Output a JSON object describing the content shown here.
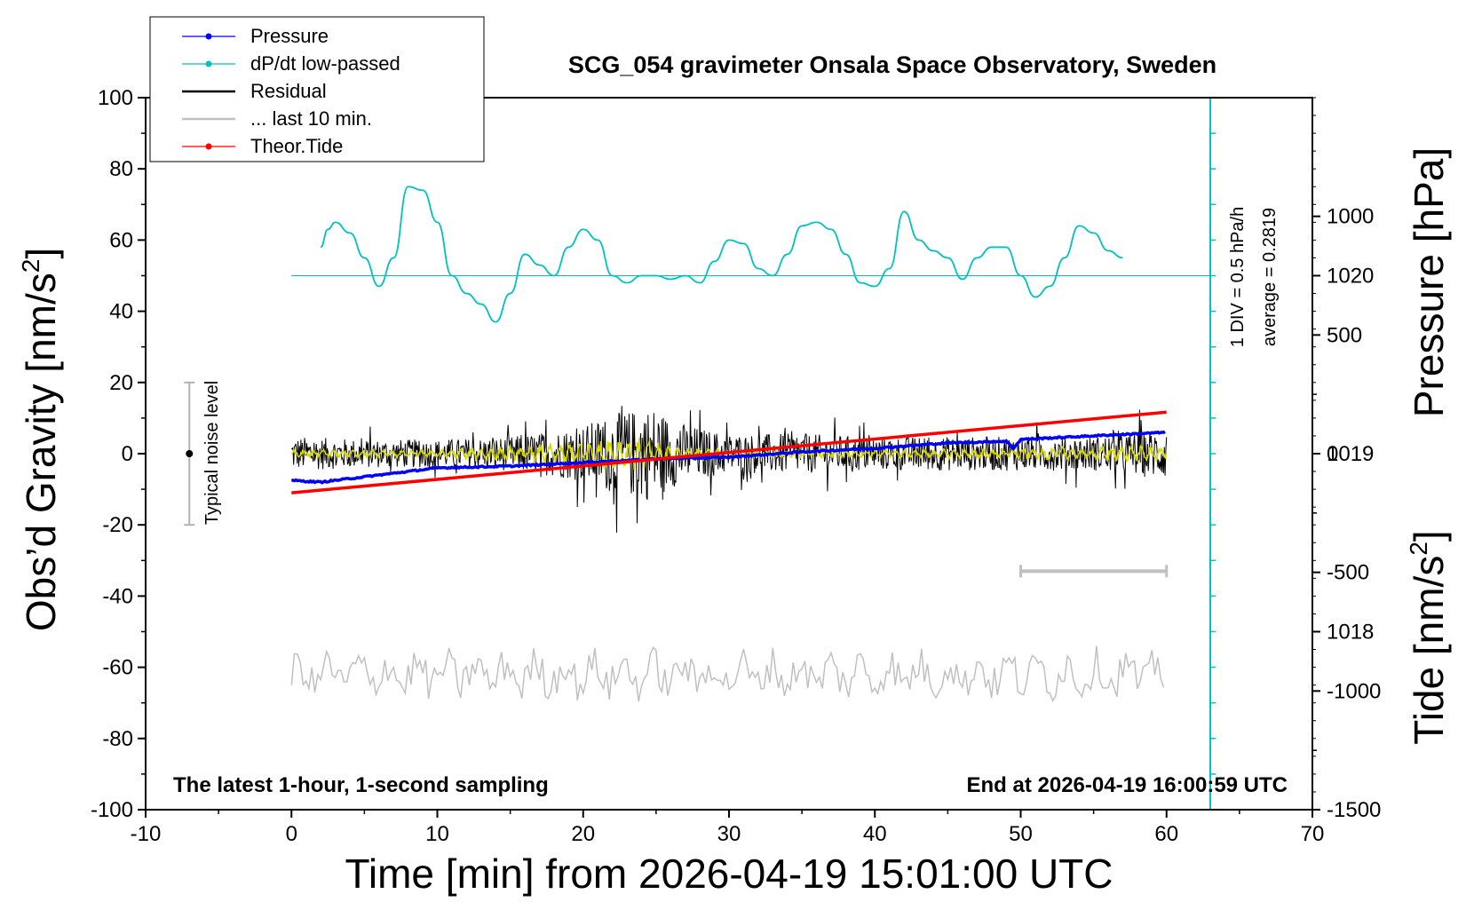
{
  "chart_data": {
    "type": "line",
    "title": "SCG_054 gravimeter Onsala Space Observatory, Sweden",
    "xlabel": "Time [min] from 2026-04-19 15:01:00 UTC",
    "ylabel_left_main": "Obs’d Gravity [nm/s",
    "ylabel_left_sup": "2",
    "ylabel_left_tail": "]",
    "ylabel_right_pressure": "Pressure [hPa]",
    "ylabel_right_tide_main": "Tide [nm/s",
    "ylabel_right_tide_sup": "2",
    "ylabel_right_tide_tail": "]",
    "xlim": [
      -10,
      70
    ],
    "ylim_gravity": [
      -100,
      100
    ],
    "ylim_pressure": [
      1017,
      1021
    ],
    "ylim_tide": [
      -1500,
      1500
    ],
    "x_ticks": [
      "-10",
      "0",
      "10",
      "20",
      "30",
      "40",
      "50",
      "60",
      "70"
    ],
    "y_ticks_gravity": [
      "-100",
      "-80",
      "-60",
      "-40",
      "-20",
      "0",
      "20",
      "40",
      "60",
      "80",
      "100"
    ],
    "y_ticks_pressure": [
      "1018",
      "1019",
      "1020"
    ],
    "y_ticks_tide": [
      "-1500",
      "-1000",
      "-500",
      "0",
      "500",
      "1000"
    ],
    "note_left": "The latest 1-hour, 1-second sampling",
    "note_right": "End at 2026-04-19 16:00:59 UTC",
    "noise_label": "Typical noise level",
    "noise_level": {
      "x": -7,
      "center": 0,
      "half_range": 20
    },
    "dpdt_scale_label": "1 DIV = 0.5 hPa/h",
    "dpdt_average_label": "average = 0.2819",
    "dpdt_scale_bar": {
      "x": 63,
      "from_pressure": 1017,
      "to_pressure": 1021,
      "divisions": 20
    },
    "last10_bar": {
      "x_start": 50,
      "x_end": 60,
      "y": -33
    },
    "legend": [
      {
        "label": "Pressure",
        "color": "#0000ff",
        "marker": "dot"
      },
      {
        "label": "dP/dt low-passed",
        "color": "#00c0c0",
        "marker": "dot"
      },
      {
        "label": "Residual",
        "color": "#000000",
        "marker": "line"
      },
      {
        "label": "... last 10 min.",
        "color": "#c0c0c0",
        "marker": "line"
      },
      {
        "label": "Theor.Tide",
        "color": "#ff0000",
        "marker": "dot"
      }
    ],
    "legend_placement": "top-left",
    "series": [
      {
        "name": "Pressure",
        "color": "#0000ff",
        "axis": "pressure",
        "x": [
          0,
          2,
          5,
          10,
          15,
          20,
          25,
          30,
          35,
          40,
          45,
          49,
          49.5,
          50,
          55,
          60
        ],
        "y": [
          1018.85,
          1018.84,
          1018.87,
          1018.92,
          1018.93,
          1018.95,
          1018.97,
          1018.98,
          1019.01,
          1019.03,
          1019.06,
          1019.07,
          1019.03,
          1019.08,
          1019.1,
          1019.12
        ]
      },
      {
        "name": "dP/dt low-passed",
        "color": "#00c0c0",
        "axis": "gravity",
        "x": [
          2,
          2.5,
          3,
          4,
          5,
          6,
          7,
          8,
          9,
          10,
          11,
          12,
          13,
          14,
          15,
          16,
          17,
          18,
          19,
          20,
          21,
          22,
          23,
          24,
          25,
          26,
          27,
          28,
          29,
          30,
          31,
          32,
          33,
          34,
          35,
          36,
          37,
          38,
          39,
          40,
          41,
          42,
          43,
          44,
          45,
          46,
          47,
          48,
          49,
          50,
          51,
          52,
          53,
          54,
          55,
          56,
          57
        ],
        "y": [
          58,
          63,
          65,
          62,
          55,
          47,
          55,
          75,
          74,
          65,
          50,
          45,
          42,
          37,
          45,
          56,
          53,
          50,
          58,
          63,
          60,
          50,
          48,
          50,
          50,
          49,
          50,
          48,
          54,
          60,
          59,
          52,
          50,
          56,
          64,
          65,
          63,
          56,
          48,
          47,
          52,
          68,
          60,
          57,
          55,
          49,
          55,
          58,
          58,
          50,
          44,
          47,
          55,
          64,
          62,
          57,
          55
        ]
      },
      {
        "name": "Residual",
        "color": "#000000",
        "axis": "gravity",
        "x": [
          0,
          5,
          10,
          15,
          18,
          20,
          21,
          22,
          23,
          24,
          25,
          26,
          28,
          30,
          35,
          40,
          45,
          50,
          55,
          58,
          60
        ],
        "amplitude": [
          6,
          5,
          5,
          6,
          8,
          10,
          12,
          14,
          15,
          16,
          17,
          12,
          9,
          7,
          7,
          6,
          6,
          6,
          6,
          8,
          9
        ]
      },
      {
        "name": "Residual low-passed",
        "color": "#d8d800",
        "axis": "gravity",
        "x": [
          0,
          10,
          20,
          22,
          24,
          25,
          26,
          30,
          40,
          50,
          60
        ],
        "amplitude": [
          1,
          1,
          3,
          4,
          4,
          3,
          2,
          1,
          1,
          1.5,
          2
        ]
      },
      {
        "name": "... last 10 min.",
        "color": "#c0c0c0",
        "axis": "gravity",
        "x": [
          0,
          60
        ],
        "baseline": -62,
        "amplitude": 5
      },
      {
        "name": "Theor.Tide",
        "color": "#ff0000",
        "axis": "tide",
        "x": [
          0,
          60
        ],
        "y": [
          -165,
          175
        ]
      }
    ]
  }
}
